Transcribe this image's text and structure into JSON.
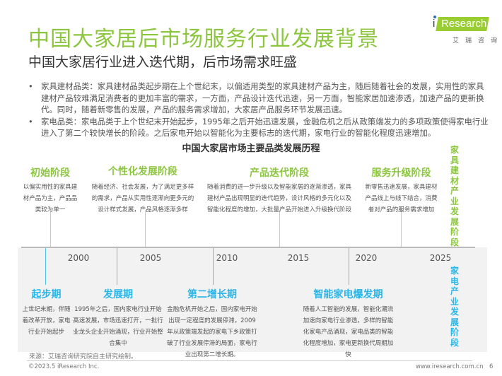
{
  "header": {
    "title": "中国大家居后市场服务行业发展背景",
    "subtitle": "中国大家居行业进入迭代期，后市场需求旺盛"
  },
  "logo": {
    "brand": "iResearch",
    "cn": "艾瑞咨询",
    "accent": "#9acd32"
  },
  "bullets": [
    "家具建材品类：家具建材品类起步期在上个世纪末，以偏适用类型的家具建材产品为主，随后随着社会的发展，实用性的家具建材产品较难满足消费者的更加丰富的需求，一方面，产品设计迭代迅速，另一方面，智能家居加速渗透，加速产品的更新换代。同时，随着新零售的发展，产品的服务需求增加，大家居产品服务环节发展迅速。",
    "家电品类：家电品类于上个世纪末开始起步，1995年之后开始迅速发展，金融危机之后从政策端发力的多项政策使得家电行业进入了第二个较快增长的阶段。之后家电开始以智能化为主要标志的迭代期，家电行业的智能化程度迅速增加。"
  ],
  "timeline": {
    "title": "中国大家居市场主要品类发展历程",
    "years": [
      "2000",
      "2005",
      "2010",
      "2015",
      "2020",
      "2025"
    ],
    "furniture_label": "家具建材产业发展阶段",
    "appliance_label": "家电产业发展阶段",
    "furniture_color": "#8cc63f",
    "appliance_color": "#29b6e8",
    "furniture_phases": [
      {
        "name": "初始阶段",
        "desc": "以偏实用性的家具建材产品为主，产品品类较为单一"
      },
      {
        "name": "个性化发展阶段",
        "desc": "随着经济、社会发展，为了满足更多样的需求，产品从实用性逐渐向更多元的设计样式发展，产品风格逐渐多样"
      },
      {
        "name": "产品迭代阶段",
        "desc": "随着消费的进一步升级以及智能家居的逐渐渗透，家具建材产品出现明显的迭代趋势，设计风格的多元化以及智能化程度的增加，大批量产品开始进入升级换代阶段"
      },
      {
        "name": "服务升级阶段",
        "desc": "新零售迅速发展，家具建材产品线上与线下结合，消费者对产品的服务需求增加"
      }
    ],
    "appliance_phases": [
      {
        "name": "起步期",
        "desc": "上世纪末期，伴随着改革开放，家电行业开始起步"
      },
      {
        "name": "发展期",
        "desc": "1995年之后，国内家电行业开始高速发展，市场迅速打开，一批行业龙头企业开始涌现，行业开始整合集中"
      },
      {
        "name": "第二增长期",
        "desc": "金融危机开始之后，国内家电开始出现一定程度的发展停滞，2009年从政策端发起的家电下乡政策打破了行业发展停滞的局面，家电行业出现第二增长期。"
      },
      {
        "name": "智能家电爆发期",
        "desc": "随着人工智能的发展，智能化潮流加速向家电行业渗透，多样的智能化家电产品涌现，家电品类的智能化程度增加，家电更新换代周期加快"
      }
    ]
  },
  "footer": {
    "source": "来源：艾瑞咨询研究院自主研究绘制。",
    "copyright": "©2023.5 iResearch Inc.",
    "site": "www.iresearch.com.cn",
    "page": "6"
  }
}
